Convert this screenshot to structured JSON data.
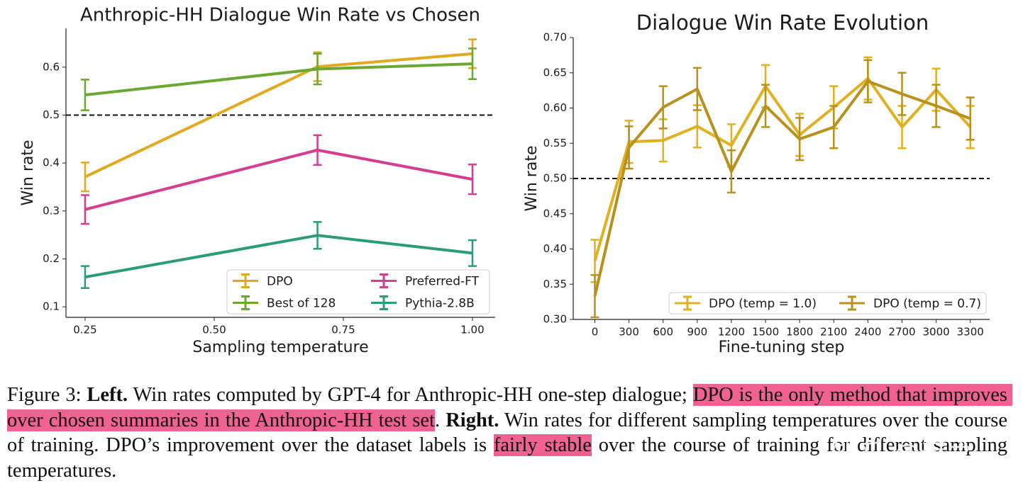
{
  "chart_data": [
    {
      "type": "line",
      "title": "Anthropic-HH Dialogue Win Rate vs Chosen",
      "x_label": "Sampling temperature",
      "y_label": "Win rate",
      "x": [
        0.25,
        0.7,
        1.0
      ],
      "series": [
        {
          "name": "DPO",
          "color": "#e3a91e",
          "values": [
            0.371,
            0.601,
            0.628
          ],
          "errors": [
            0.03,
            0.03,
            0.03
          ]
        },
        {
          "name": "Best of 128",
          "color": "#6aa832",
          "values": [
            0.542,
            0.596,
            0.607
          ],
          "errors": [
            0.032,
            0.032,
            0.032
          ]
        },
        {
          "name": "Preferred-FT",
          "color": "#d63d8f",
          "values": [
            0.303,
            0.427,
            0.366
          ],
          "errors": [
            0.03,
            0.031,
            0.031
          ]
        },
        {
          "name": "Pythia-2.8B",
          "color": "#2a9d78",
          "values": [
            0.162,
            0.249,
            0.212
          ],
          "errors": [
            0.023,
            0.028,
            0.027
          ]
        }
      ],
      "reference_line": 0.5,
      "xlim": [
        0.213,
        1.044
      ],
      "xticks": [
        0.25,
        {
          "value": 0.5,
          "label": "0.50"
        },
        0.75,
        {
          "value": 1.0,
          "label": "1.00"
        }
      ],
      "ylim": [
        0.078,
        0.681
      ],
      "yticks": [
        0.1,
        0.2,
        0.3,
        0.4,
        0.5,
        0.6
      ],
      "legend": "lower right",
      "legend_columns": 2
    },
    {
      "type": "line",
      "title": "Dialogue Win Rate Evolution",
      "x_label": "Fine-tuning step",
      "y_label": "Win rate",
      "x": [
        0,
        300,
        600,
        900,
        1200,
        1500,
        1800,
        2100,
        2400,
        2700,
        3000,
        3300
      ],
      "series": [
        {
          "name": "DPO (temp = 1.0)",
          "color": "#e0b020",
          "values": [
            0.383,
            0.552,
            0.554,
            0.574,
            0.547,
            0.631,
            0.562,
            0.601,
            0.642,
            0.573,
            0.626,
            0.573
          ],
          "errors": [
            0.03,
            0.03,
            0.03,
            0.03,
            0.03,
            0.03,
            0.03,
            0.03,
            0.03,
            0.03,
            0.03,
            0.03
          ]
        },
        {
          "name": "DPO (temp = 0.7)",
          "color": "#b8901c",
          "values": [
            0.333,
            0.544,
            0.601,
            0.627,
            0.51,
            0.603,
            0.556,
            0.573,
            0.638,
            0.62,
            0.603,
            0.585
          ],
          "errors": [
            0.03,
            0.03,
            0.03,
            0.03,
            0.03,
            0.03,
            0.03,
            0.03,
            0.03,
            0.03,
            0.03,
            0.03
          ]
        }
      ],
      "reference_line": 0.5,
      "xlim": [
        -190,
        3470
      ],
      "xticks": [
        0,
        300,
        600,
        900,
        1200,
        1500,
        1800,
        2100,
        2400,
        2700,
        3000,
        3300
      ],
      "ylim": [
        0.3,
        0.7
      ],
      "yticks": [
        {
          "value": 0.3,
          "label": "0.30"
        },
        0.35,
        {
          "value": 0.4,
          "label": "0.40"
        },
        0.45,
        {
          "value": 0.5,
          "label": "0.50"
        },
        0.55,
        {
          "value": 0.6,
          "label": "0.60"
        },
        0.65,
        {
          "value": 0.7,
          "label": "0.70"
        }
      ],
      "legend": "lower right",
      "legend_columns": 2
    }
  ],
  "caption": [
    {
      "text": "Figure 3: "
    },
    {
      "text": "Left.",
      "bold": true
    },
    {
      "text": " Win rates computed by GPT-4 for Anthropic-HH one-step dialogue; "
    },
    {
      "text": "DPO is the only method that improves over chosen summaries in the Anthropic-HH test set",
      "highlight": "#f06292"
    },
    {
      "text": ". "
    },
    {
      "text": "Right.",
      "bold": true
    },
    {
      "text": " Win rates for different sampling temperatures over the course of training. DPO’s improvement over the dataset labels is "
    },
    {
      "text": "fairly stable",
      "highlight": "#f06292"
    },
    {
      "text": " over the course of training for different sampling temperatures."
    }
  ],
  "watermark": "知乎 @远之"
}
